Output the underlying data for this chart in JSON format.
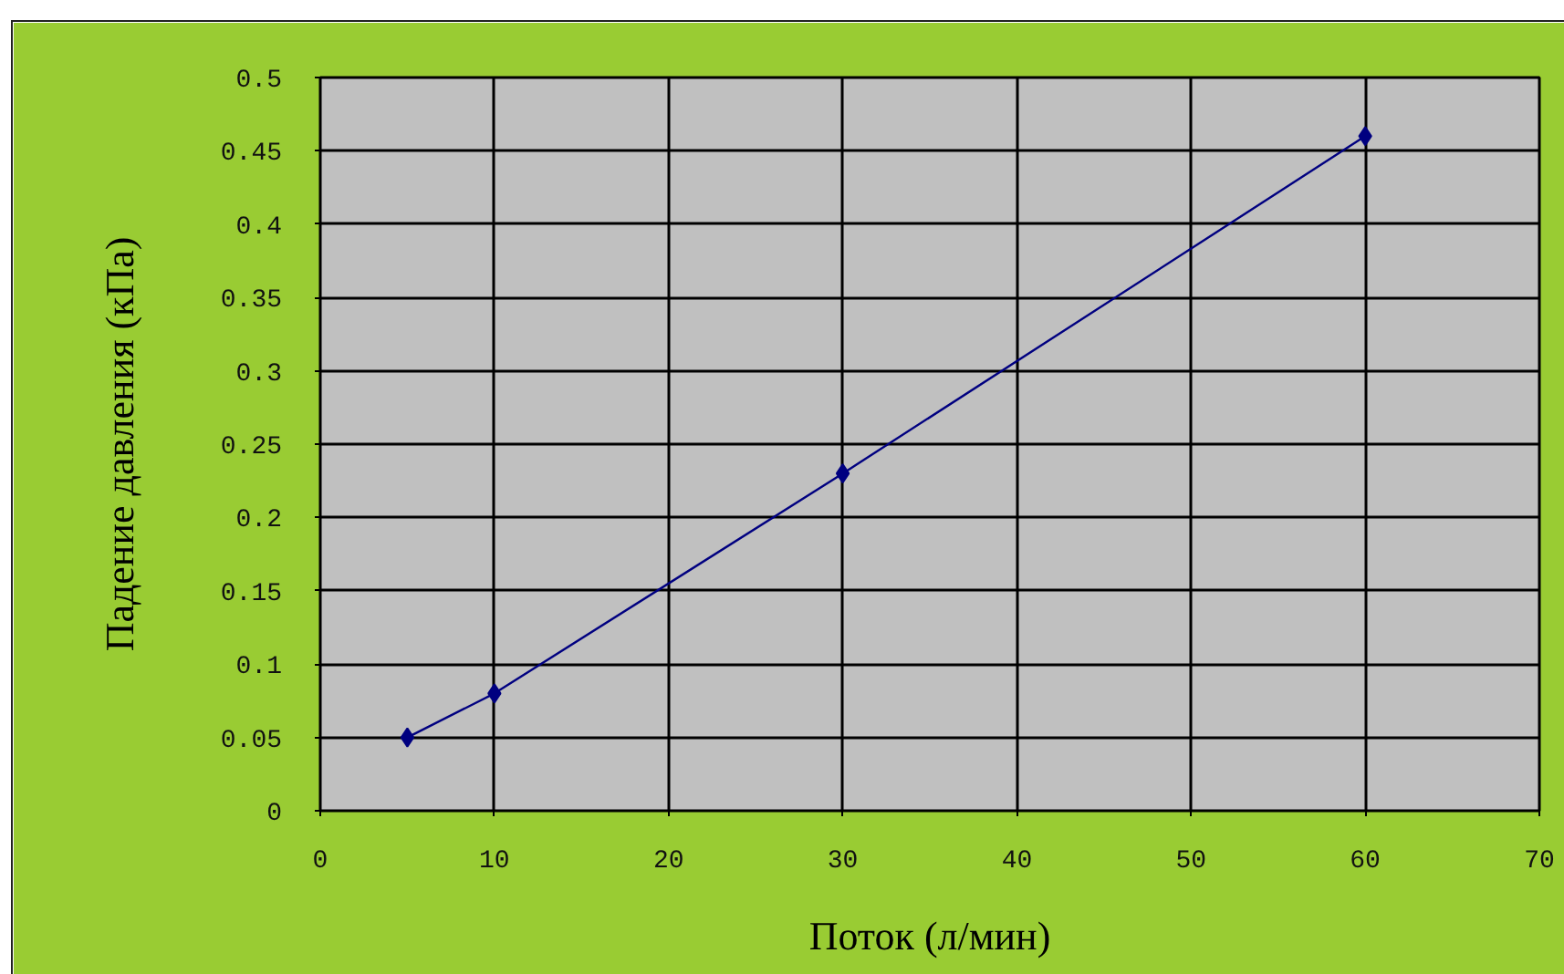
{
  "chart_data": {
    "type": "line",
    "xlabel": "Поток (л/мин)",
    "ylabel": "Падение давления (кПа)",
    "x": [
      5,
      10,
      30,
      60
    ],
    "series": [
      {
        "color": "#000080",
        "values": [
          0.05,
          0.08,
          0.23,
          0.46
        ]
      }
    ],
    "xlim": [
      0,
      70
    ],
    "xticks": [
      0,
      10,
      20,
      30,
      40,
      50,
      60,
      70
    ],
    "ylim": [
      0,
      0.5
    ],
    "yticks": [
      0,
      0.05,
      0.1,
      0.15,
      0.2,
      0.25,
      0.3,
      0.35,
      0.4,
      0.45,
      0.5
    ],
    "grid": true,
    "marker": "diamond",
    "line_style": "solid"
  }
}
